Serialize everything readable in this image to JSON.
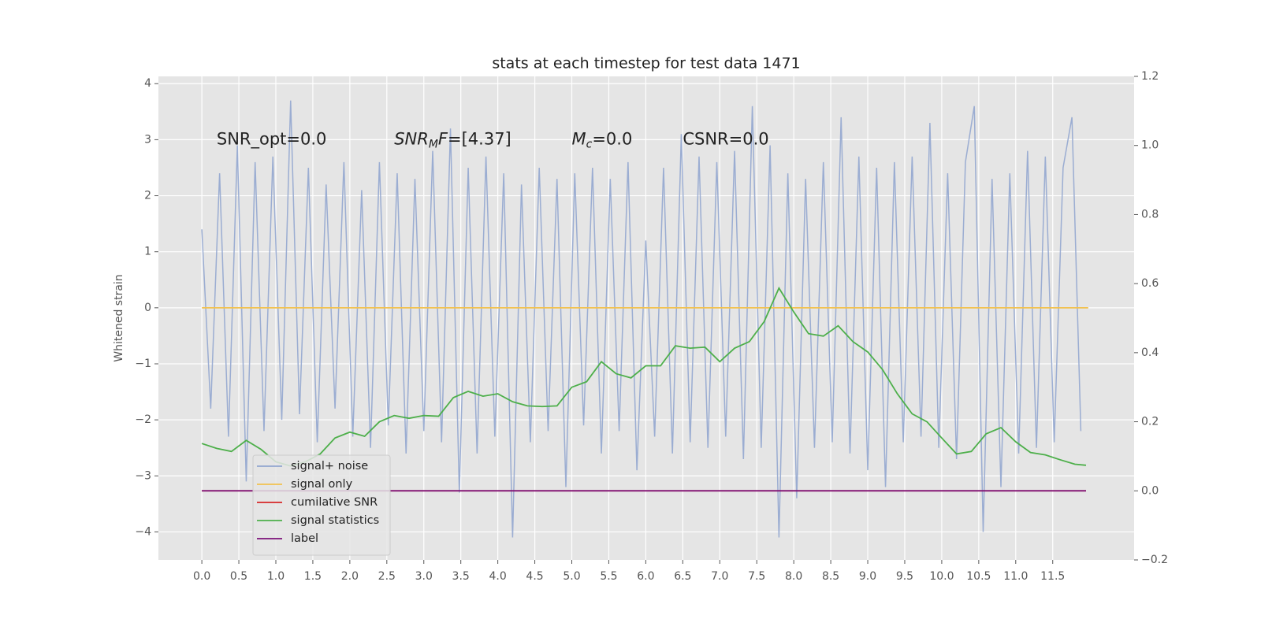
{
  "chart_data": {
    "type": "line",
    "title": "stats at each timestep for test data 1471",
    "ylabel": "Whitened strain",
    "xlim": [
      -0.587,
      12.6
    ],
    "ylim": [
      -4.5,
      4.13
    ],
    "y2lim": [
      -0.2,
      1.2
    ],
    "grid": true,
    "legend": "lower left",
    "xticks": [
      {
        "value": 0,
        "label": "0.0"
      },
      0.5,
      {
        "value": 1,
        "label": "1.0"
      },
      1.5,
      {
        "value": 2,
        "label": "2.0"
      },
      2.5,
      {
        "value": 3,
        "label": "3.0"
      },
      3.5,
      {
        "value": 4,
        "label": "4.0"
      },
      4.5,
      {
        "value": 5,
        "label": "5.0"
      },
      5.5,
      {
        "value": 6,
        "label": "6.0"
      },
      6.5,
      {
        "value": 7,
        "label": "7.0"
      },
      7.5,
      {
        "value": 8,
        "label": "8.0"
      },
      8.5,
      {
        "value": 9,
        "label": "9.0"
      },
      9.5,
      {
        "value": 10,
        "label": "10.0"
      },
      10.5,
      {
        "value": 11,
        "label": "11.0"
      },
      11.5
    ],
    "yticks": [
      {
        "value": -4,
        "label": "−4"
      },
      {
        "value": -3,
        "label": "−3"
      },
      {
        "value": -2,
        "label": "−2"
      },
      {
        "value": -1,
        "label": "−1"
      },
      0,
      1,
      2,
      3,
      4
    ],
    "y2ticks": [
      {
        "value": -0.2,
        "label": "−0.2"
      },
      {
        "value": 0,
        "label": "0.0"
      },
      0.2,
      0.4,
      0.6,
      0.8,
      {
        "value": 1,
        "label": "1.0"
      },
      1.2
    ],
    "annotations": [
      {
        "x": 0.2,
        "y": 3,
        "parts": [
          {
            "text": "SNR_opt=0.0"
          }
        ]
      },
      {
        "x": 2.6,
        "y": 3,
        "parts": [
          {
            "text": "SNR",
            "italic": true
          },
          {
            "text": "M",
            "italic": true,
            "sub": true
          },
          {
            "text": "F",
            "italic": true
          },
          {
            "text": "=[4.37]"
          }
        ]
      },
      {
        "x": 5.0,
        "y": 3,
        "parts": [
          {
            "text": "M",
            "italic": true
          },
          {
            "text": "c",
            "italic": true,
            "sub": true
          },
          {
            "text": "=0.0"
          }
        ]
      },
      {
        "x": 6.5,
        "y": 3,
        "parts": [
          {
            "text": "CSNR=0.0"
          }
        ]
      }
    ],
    "series": [
      {
        "name": "signal+ noise",
        "color": "#92a6cf",
        "x": [
          0,
          0.12,
          0.24,
          0.36,
          0.48,
          0.6,
          0.72,
          0.84,
          0.96,
          1.08,
          1.2,
          1.32,
          1.44,
          1.56,
          1.68,
          1.8,
          1.92,
          2.04,
          2.16,
          2.28,
          2.4,
          2.52,
          2.64,
          2.76,
          2.88,
          3.0,
          3.12,
          3.24,
          3.36,
          3.48,
          3.6,
          3.72,
          3.84,
          3.96,
          4.08,
          4.2,
          4.32,
          4.44,
          4.56,
          4.68,
          4.8,
          4.92,
          5.04,
          5.16,
          5.28,
          5.4,
          5.52,
          5.64,
          5.76,
          5.88,
          6.0,
          6.12,
          6.24,
          6.36,
          6.48,
          6.6,
          6.72,
          6.84,
          6.96,
          7.08,
          7.2,
          7.32,
          7.44,
          7.56,
          7.68,
          7.8,
          7.92,
          8.04,
          8.16,
          8.28,
          8.4,
          8.52,
          8.64,
          8.76,
          8.88,
          9.0,
          9.12,
          9.24,
          9.36,
          9.48,
          9.6,
          9.72,
          9.84,
          9.96,
          10.08,
          10.2,
          10.32,
          10.44,
          10.56,
          10.68,
          10.8,
          10.92,
          11.04,
          11.16,
          11.28,
          11.4,
          11.52,
          11.64,
          11.76,
          11.88
        ],
        "values": [
          1.4,
          -1.8,
          2.4,
          -2.3,
          2.9,
          -3.1,
          2.6,
          -2.2,
          2.7,
          -2.0,
          3.7,
          -1.9,
          2.5,
          -2.4,
          2.2,
          -1.8,
          2.6,
          -2.3,
          2.1,
          -2.5,
          2.6,
          -2.1,
          2.4,
          -2.6,
          2.3,
          -2.2,
          2.8,
          -2.4,
          3.2,
          -3.3,
          2.5,
          -2.6,
          2.7,
          -2.3,
          2.4,
          -4.1,
          2.2,
          -2.4,
          2.5,
          -2.2,
          2.3,
          -3.2,
          2.4,
          -2.1,
          2.5,
          -2.6,
          2.3,
          -2.2,
          2.6,
          -2.9,
          1.2,
          -2.3,
          2.5,
          -2.6,
          3.1,
          -2.4,
          2.7,
          -2.5,
          2.6,
          -2.3,
          2.8,
          -2.7,
          3.6,
          -2.5,
          2.9,
          -4.1,
          2.4,
          -3.4,
          2.3,
          -2.5,
          2.6,
          -2.4,
          3.4,
          -2.6,
          2.7,
          -2.9,
          2.5,
          -3.2,
          2.6,
          -2.4,
          2.7,
          -2.3,
          3.3,
          -2.5,
          2.4,
          -2.7,
          2.6,
          3.6,
          -4.0,
          2.3,
          -3.2,
          2.4,
          -2.6,
          2.8,
          -2.5,
          2.7,
          -2.4,
          2.5,
          3.4,
          -2.2
        ]
      },
      {
        "name": "signal only",
        "color": "#f2c14e",
        "x": [
          0,
          11.98
        ],
        "values": [
          0,
          0
        ]
      },
      {
        "name": "cumilative SNR",
        "color": "#d62728",
        "axis": "y2",
        "x": [
          0,
          11.95
        ],
        "values": [
          0,
          0
        ]
      },
      {
        "name": "signal statistics",
        "color": "#4daf4a",
        "axis": "y2",
        "x": [
          0,
          0.2,
          0.4,
          0.6,
          0.8,
          1.0,
          1.2,
          1.4,
          1.6,
          1.8,
          2.0,
          2.2,
          2.4,
          2.6,
          2.8,
          3.0,
          3.2,
          3.4,
          3.6,
          3.8,
          4.0,
          4.2,
          4.4,
          4.6,
          4.8,
          5.0,
          5.2,
          5.4,
          5.6,
          5.8,
          6.0,
          6.2,
          6.4,
          6.6,
          6.8,
          7.0,
          7.2,
          7.4,
          7.6,
          7.8,
          8.0,
          8.2,
          8.4,
          8.6,
          8.8,
          9.0,
          9.2,
          9.4,
          9.6,
          9.8,
          10.0,
          10.2,
          10.4,
          10.6,
          10.8,
          11.0,
          11.2,
          11.4,
          11.6,
          11.8,
          11.95
        ],
        "values": [
          0.137,
          0.123,
          0.114,
          0.146,
          0.12,
          0.084,
          0.072,
          0.084,
          0.107,
          0.153,
          0.17,
          0.158,
          0.2,
          0.218,
          0.21,
          0.218,
          0.216,
          0.27,
          0.288,
          0.274,
          0.281,
          0.258,
          0.246,
          0.244,
          0.246,
          0.3,
          0.316,
          0.374,
          0.339,
          0.327,
          0.362,
          0.362,
          0.42,
          0.413,
          0.416,
          0.374,
          0.413,
          0.432,
          0.49,
          0.587,
          0.518,
          0.455,
          0.448,
          0.478,
          0.432,
          0.402,
          0.351,
          0.281,
          0.223,
          0.2,
          0.153,
          0.107,
          0.114,
          0.165,
          0.183,
          0.142,
          0.111,
          0.104,
          0.09,
          0.077,
          0.074
        ]
      },
      {
        "name": "label",
        "color": "#7b1079",
        "axis": "y2",
        "x": [
          0,
          11.95
        ],
        "values": [
          0,
          0
        ]
      }
    ]
  }
}
